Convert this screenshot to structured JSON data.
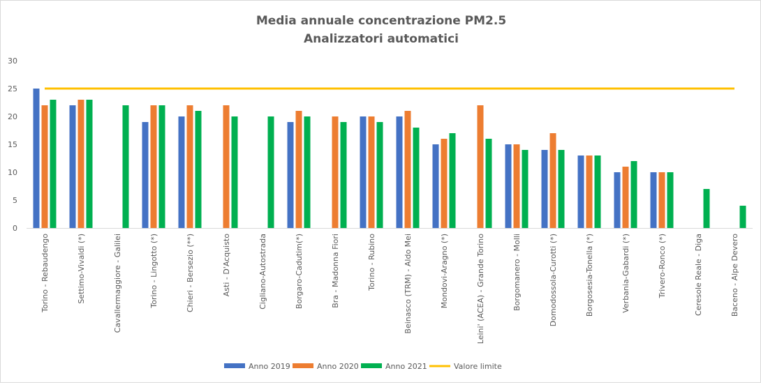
{
  "chart_data": {
    "type": "bar",
    "title": [
      "Media annuale concentrazione PM2.5",
      "Analizzatori automatici"
    ],
    "xlabel": "",
    "ylabel": "",
    "ylim": [
      0,
      30
    ],
    "yticks": [
      0,
      5,
      10,
      15,
      20,
      25,
      30
    ],
    "grid": false,
    "legend": "bottom",
    "categories": [
      "Torino - Rebaudengo",
      "Settimo-Vivaldi (*)",
      "Cavallermaggiore - Galilei",
      "Torino - Lingotto (*)",
      "Chieri - Bersezio (**)",
      "Asti - D'Acquisto",
      "Cigliano-Autostrada",
      "Borgaro-Cadutim(*)",
      "Bra - Madonna Fiori",
      "Torino - Rubino",
      "Beinasco (TRM) - Aldo Mei",
      "Mondovi-Aragno (*)",
      "Leini' (ACEA) - Grande Torino",
      "Borgomanero - Molli",
      "Domodossola-Curotti (*)",
      "Borgosesia-Tonella (*)",
      "Verbania-Gabardi (*)",
      "Trivero-Ronco (*)",
      "Ceresole Reale - Diga",
      "Baceno - Alpe Devero"
    ],
    "series": [
      {
        "name": "Anno 2019",
        "color": "#4472c4",
        "values": [
          25,
          22,
          null,
          19,
          20,
          null,
          null,
          19,
          null,
          20,
          20,
          15,
          null,
          15,
          14,
          13,
          10,
          10,
          null,
          null
        ]
      },
      {
        "name": "Anno 2020",
        "color": "#ed7d31",
        "values": [
          22,
          23,
          null,
          22,
          22,
          22,
          null,
          21,
          20,
          20,
          21,
          16,
          22,
          15,
          17,
          13,
          11,
          10,
          null,
          null
        ]
      },
      {
        "name": "Anno 2021",
        "color": "#00b050",
        "values": [
          23,
          23,
          22,
          22,
          21,
          20,
          20,
          20,
          19,
          19,
          18,
          17,
          16,
          14,
          14,
          13,
          12,
          10,
          7,
          4
        ]
      }
    ],
    "reference_line": {
      "name": "Valore limite",
      "value": 25,
      "color": "#ffc000"
    }
  }
}
